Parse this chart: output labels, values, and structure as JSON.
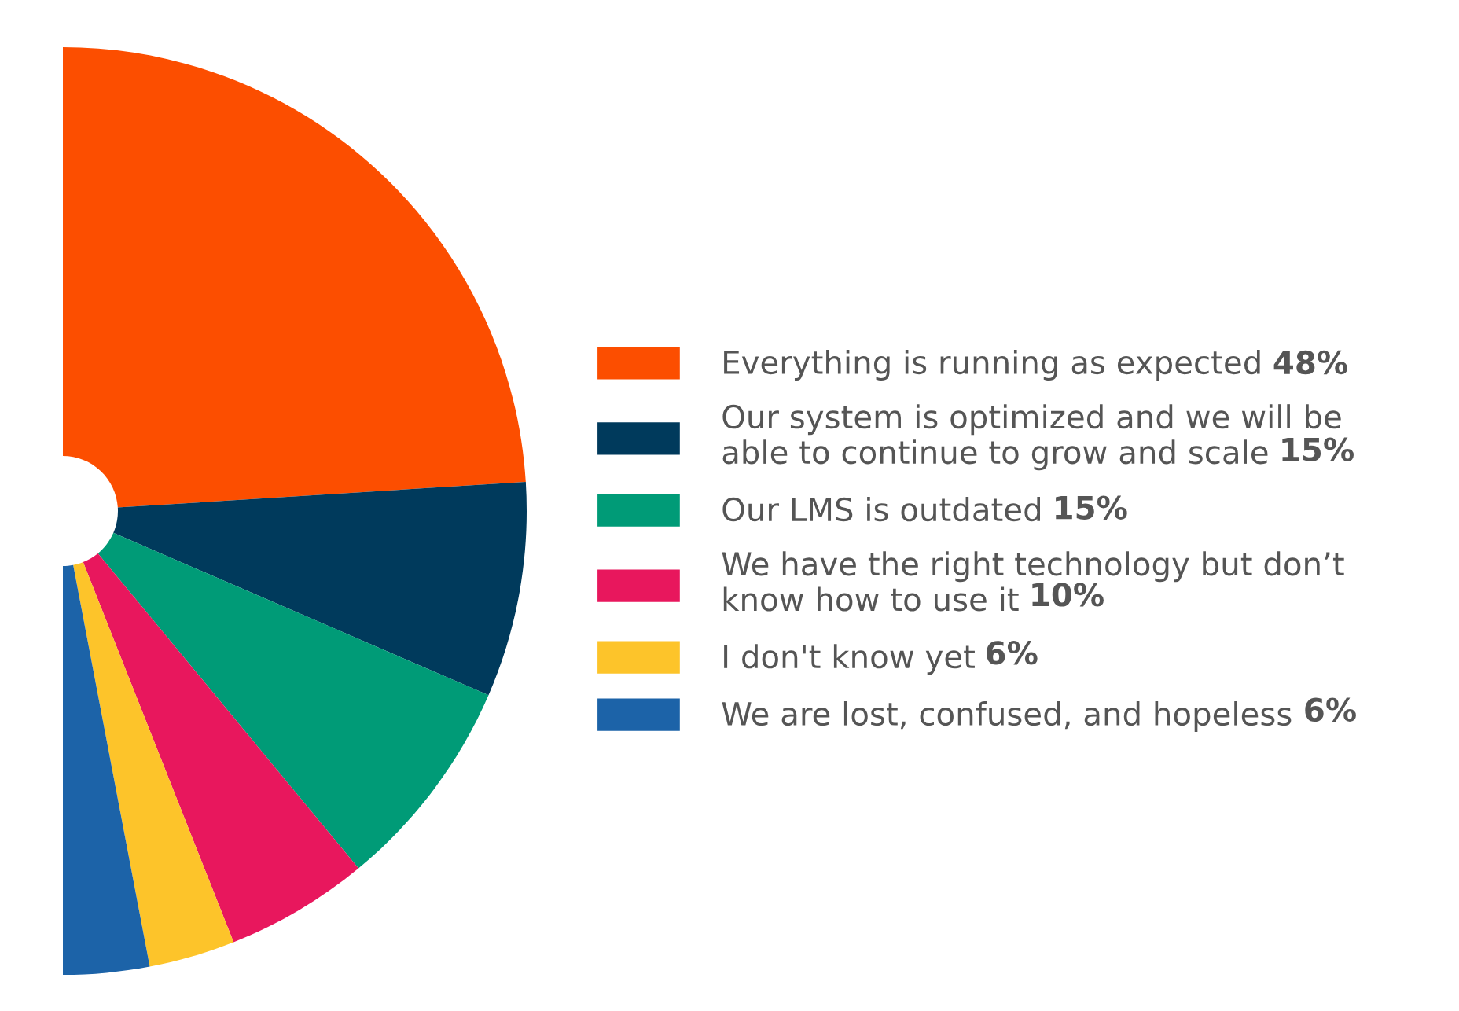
{
  "chart_data": {
    "type": "pie",
    "categories": [
      "Everything is running as expected",
      "Our system is optimized and we will be\nable to continue to grow and scale",
      "Our LMS is outdated",
      "We have the right technology but don’t\nknow how to use it",
      "I don't know yet",
      "We are lost, confused, and hopeless"
    ],
    "values": [
      48,
      15,
      15,
      10,
      6,
      6
    ],
    "value_labels": [
      "48%",
      "15%",
      "15%",
      "10%",
      "6%",
      "6%"
    ],
    "colors": [
      "#fc4e00",
      "#003a5c",
      "#009b77",
      "#e8175d",
      "#fdc42a",
      "#1c63a8"
    ],
    "legend": "right"
  }
}
